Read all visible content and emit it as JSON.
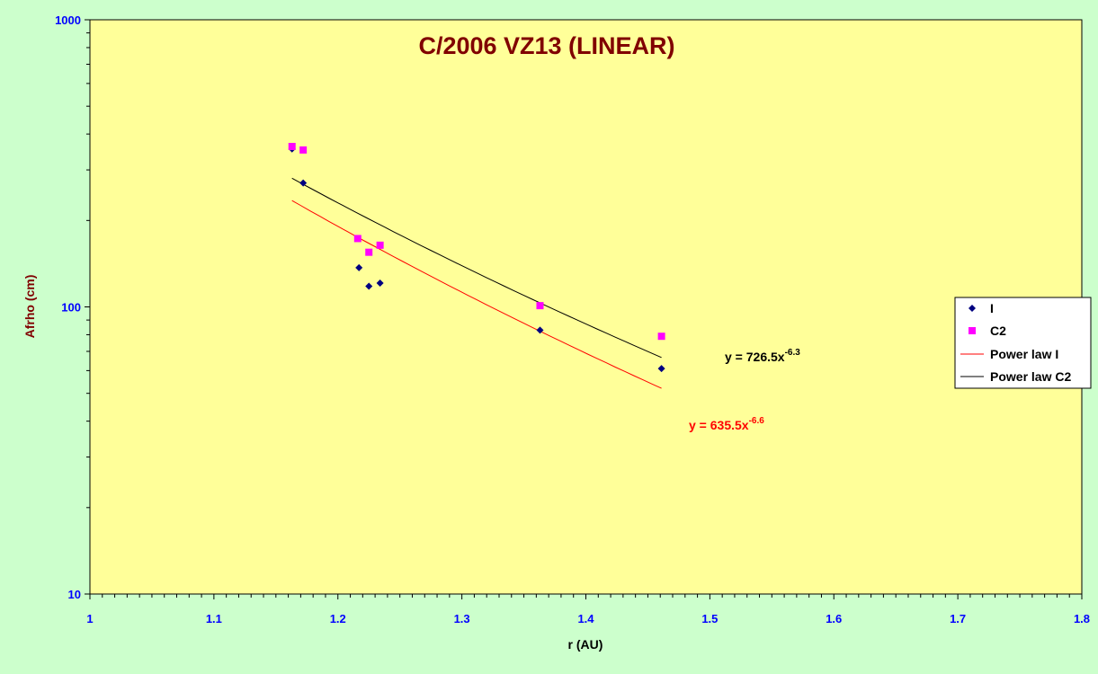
{
  "chart_data": {
    "type": "scatter",
    "title": "C/2006 VZ13 (LINEAR)",
    "xlabel": "r (AU)",
    "ylabel": "Afrho (cm)",
    "xlim": [
      1,
      1.8
    ],
    "ylim": [
      10,
      1000
    ],
    "y_scale": "log",
    "x_ticks": [
      "1",
      "1.1",
      "1.2",
      "1.3",
      "1.4",
      "1.5",
      "1.6",
      "1.7",
      "1.8"
    ],
    "y_ticks": [
      "10",
      "100",
      "1000"
    ],
    "grid": false,
    "legend_position": "right",
    "series": [
      {
        "name": "I",
        "marker": "diamond",
        "color": "#000080",
        "x": [
          1.163,
          1.172,
          1.217,
          1.225,
          1.234,
          1.363,
          1.461
        ],
        "y": [
          355,
          270,
          137,
          118,
          121,
          83,
          61
        ]
      },
      {
        "name": "C2",
        "marker": "square",
        "color": "#ff00ff",
        "x": [
          1.163,
          1.172,
          1.216,
          1.225,
          1.234,
          1.363,
          1.461
        ],
        "y": [
          362,
          352,
          173,
          155,
          164,
          101,
          79
        ]
      },
      {
        "name": "Power law I",
        "line": true,
        "color": "#ff0000",
        "coef": 635.5,
        "exp": -6.6,
        "x_range": [
          1.163,
          1.461
        ]
      },
      {
        "name": "Power law C2",
        "line": true,
        "color": "#000000",
        "coef": 726.5,
        "exp": -6.3,
        "x_range": [
          1.163,
          1.461
        ]
      }
    ],
    "annotations": [
      {
        "base": "y = 726.5x",
        "sup": "-6.3",
        "color": "#000000"
      },
      {
        "base": "y = 635.5x",
        "sup": "-6.6",
        "color": "#ff0000"
      }
    ]
  }
}
